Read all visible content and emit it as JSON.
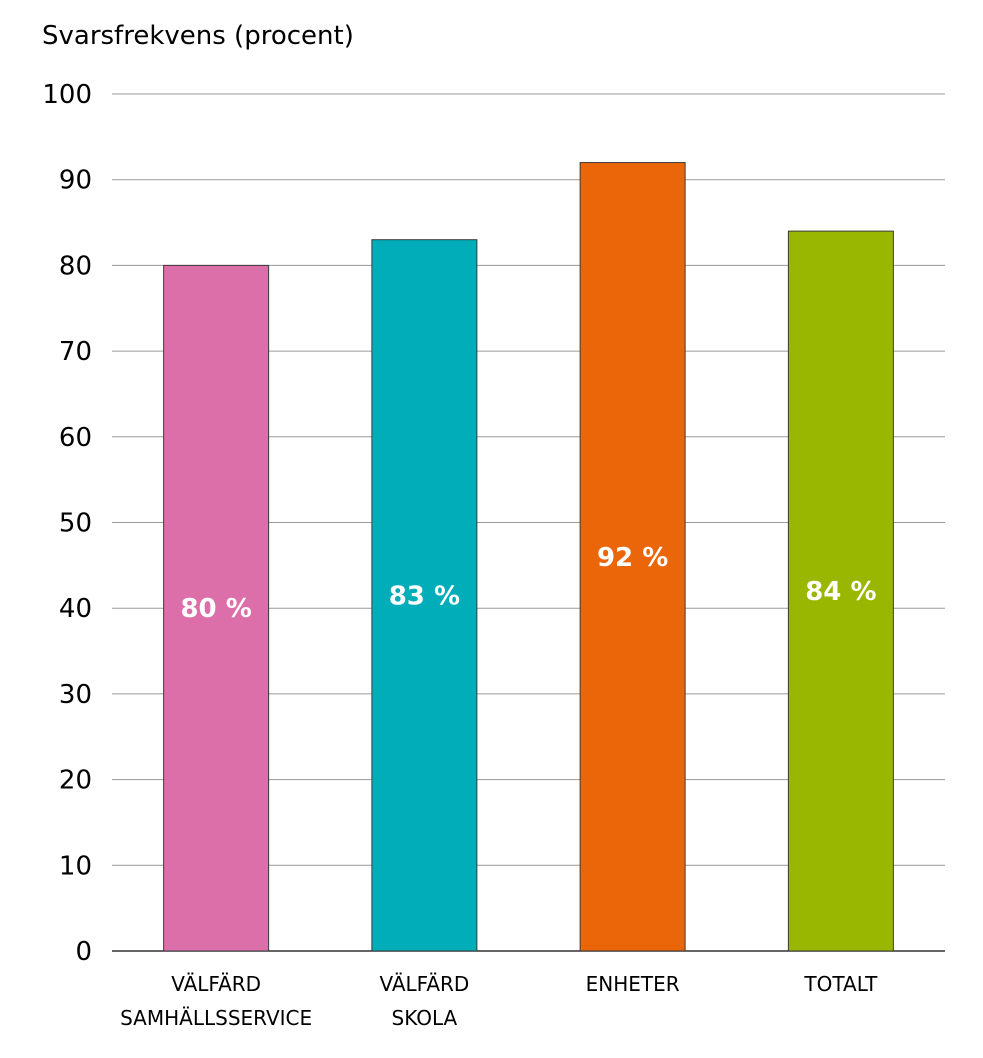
{
  "chart_data": {
    "type": "bar",
    "ylabel": "Svarsfrekvens (procent)",
    "ylim": [
      0,
      100
    ],
    "yticks": [
      0,
      10,
      20,
      30,
      40,
      50,
      60,
      70,
      80,
      90,
      100
    ],
    "grid": true,
    "categories": [
      [
        "VÄLFÄRD",
        "SAMHÄLLSSERVICE"
      ],
      [
        "VÄLFÄRD",
        "SKOLA"
      ],
      [
        "ENHETER"
      ],
      [
        "TOTALT"
      ]
    ],
    "values": [
      80,
      83,
      92,
      84
    ],
    "data_labels": [
      "80 %",
      "83 %",
      "92 %",
      "84 %"
    ],
    "colors": [
      "#dc6fa9",
      "#00adb9",
      "#eb6509",
      "#99b700"
    ]
  }
}
